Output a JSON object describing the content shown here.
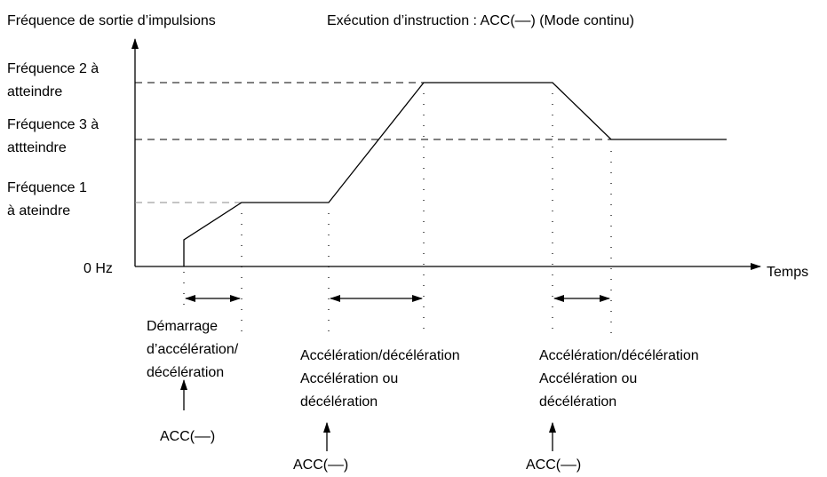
{
  "header": {
    "y_axis_title": "Fréquence de sortie d’impulsions",
    "title": "Exécution d’instruction : ACC(––) (Mode continu)"
  },
  "levels": [
    {
      "lines": [
        "Fréquence 2 à",
        "atteindre"
      ]
    },
    {
      "lines": [
        "Fréquence 3 à",
        "attteindre"
      ]
    },
    {
      "lines": [
        "Fréquence  1",
        "à ateindre"
      ]
    },
    {
      "lines": [
        "0 Hz"
      ]
    }
  ],
  "x_axis_title": "Temps",
  "phases": [
    {
      "lines": [
        "Démarrage",
        "d’accélération/",
        "décélération"
      ],
      "trigger": "ACC(––)"
    },
    {
      "lines": [
        "Accélération/décélération",
        "Accélération  ou",
        "décélération"
      ],
      "trigger": "ACC(––)"
    },
    {
      "lines": [
        "Accélération/décélération",
        "Accélération  ou",
        "décélération"
      ],
      "trigger": "ACC(––)"
    }
  ]
}
